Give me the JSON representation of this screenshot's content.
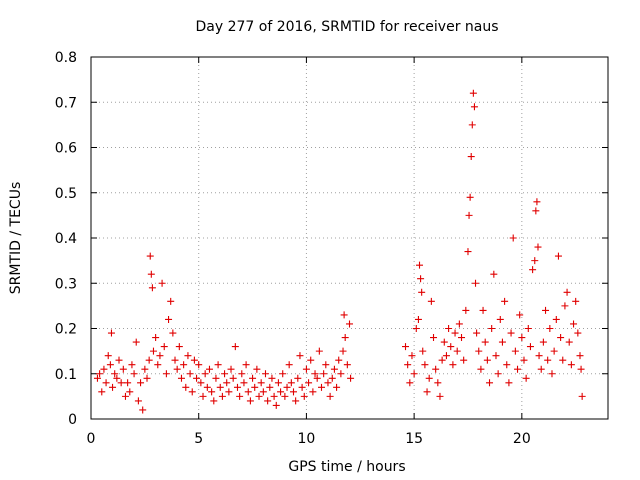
{
  "chart_data": {
    "type": "scatter",
    "title": "Day 277 of 2016, SRMTID for receiver naus",
    "xlabel": "GPS time / hours",
    "ylabel": "SRMTID / TECUs",
    "xlim": [
      0,
      24
    ],
    "ylim": [
      0,
      0.8
    ],
    "x_ticks": [
      0,
      5,
      10,
      15,
      20
    ],
    "y_ticks": [
      0,
      0.1,
      0.2,
      0.3,
      0.4,
      0.5,
      0.6,
      0.7,
      0.8
    ],
    "x_tick_labels": [
      "0",
      "5",
      "10",
      "15",
      "20"
    ],
    "y_tick_labels": [
      "0",
      "0.1",
      "0.2",
      "0.3",
      "0.4",
      "0.5",
      "0.6",
      "0.7",
      "0.8"
    ],
    "grid": true,
    "marker": "+",
    "color": "#e00000",
    "series": [
      {
        "points": [
          [
            0.3,
            0.09
          ],
          [
            0.4,
            0.1
          ],
          [
            0.5,
            0.06
          ],
          [
            0.6,
            0.11
          ],
          [
            0.7,
            0.08
          ],
          [
            0.8,
            0.14
          ],
          [
            0.9,
            0.12
          ],
          [
            0.95,
            0.19
          ],
          [
            1.0,
            0.07
          ],
          [
            1.1,
            0.1
          ],
          [
            1.2,
            0.09
          ],
          [
            1.3,
            0.13
          ],
          [
            1.4,
            0.08
          ],
          [
            1.5,
            0.11
          ],
          [
            1.6,
            0.05
          ],
          [
            1.7,
            0.08
          ],
          [
            1.8,
            0.06
          ],
          [
            1.9,
            0.12
          ],
          [
            2.0,
            0.1
          ],
          [
            2.1,
            0.17
          ],
          [
            2.2,
            0.04
          ],
          [
            2.3,
            0.08
          ],
          [
            2.4,
            0.02
          ],
          [
            2.5,
            0.11
          ],
          [
            2.6,
            0.09
          ],
          [
            2.7,
            0.13
          ],
          [
            2.75,
            0.36
          ],
          [
            2.8,
            0.32
          ],
          [
            2.85,
            0.29
          ],
          [
            2.9,
            0.15
          ],
          [
            3.0,
            0.18
          ],
          [
            3.1,
            0.12
          ],
          [
            3.2,
            0.14
          ],
          [
            3.3,
            0.3
          ],
          [
            3.4,
            0.16
          ],
          [
            3.5,
            0.1
          ],
          [
            3.6,
            0.22
          ],
          [
            3.7,
            0.26
          ],
          [
            3.8,
            0.19
          ],
          [
            3.9,
            0.13
          ],
          [
            4.0,
            0.11
          ],
          [
            4.1,
            0.16
          ],
          [
            4.2,
            0.09
          ],
          [
            4.3,
            0.12
          ],
          [
            4.4,
            0.07
          ],
          [
            4.5,
            0.14
          ],
          [
            4.6,
            0.1
          ],
          [
            4.7,
            0.06
          ],
          [
            4.8,
            0.13
          ],
          [
            4.9,
            0.09
          ],
          [
            5.0,
            0.12
          ],
          [
            5.1,
            0.08
          ],
          [
            5.2,
            0.05
          ],
          [
            5.3,
            0.1
          ],
          [
            5.4,
            0.07
          ],
          [
            5.5,
            0.11
          ],
          [
            5.6,
            0.06
          ],
          [
            5.7,
            0.04
          ],
          [
            5.8,
            0.09
          ],
          [
            5.9,
            0.12
          ],
          [
            6.0,
            0.07
          ],
          [
            6.1,
            0.05
          ],
          [
            6.2,
            0.1
          ],
          [
            6.3,
            0.08
          ],
          [
            6.4,
            0.06
          ],
          [
            6.5,
            0.11
          ],
          [
            6.6,
            0.09
          ],
          [
            6.7,
            0.16
          ],
          [
            6.8,
            0.07
          ],
          [
            6.9,
            0.05
          ],
          [
            7.0,
            0.1
          ],
          [
            7.1,
            0.08
          ],
          [
            7.2,
            0.12
          ],
          [
            7.3,
            0.06
          ],
          [
            7.4,
            0.04
          ],
          [
            7.5,
            0.09
          ],
          [
            7.6,
            0.07
          ],
          [
            7.7,
            0.11
          ],
          [
            7.8,
            0.05
          ],
          [
            7.9,
            0.08
          ],
          [
            8.0,
            0.06
          ],
          [
            8.1,
            0.1
          ],
          [
            8.2,
            0.04
          ],
          [
            8.3,
            0.07
          ],
          [
            8.4,
            0.09
          ],
          [
            8.5,
            0.05
          ],
          [
            8.6,
            0.03
          ],
          [
            8.7,
            0.08
          ],
          [
            8.8,
            0.06
          ],
          [
            8.9,
            0.1
          ],
          [
            9.0,
            0.05
          ],
          [
            9.1,
            0.07
          ],
          [
            9.2,
            0.12
          ],
          [
            9.3,
            0.08
          ],
          [
            9.4,
            0.06
          ],
          [
            9.5,
            0.04
          ],
          [
            9.6,
            0.09
          ],
          [
            9.7,
            0.14
          ],
          [
            9.8,
            0.07
          ],
          [
            9.9,
            0.05
          ],
          [
            10.0,
            0.11
          ],
          [
            10.1,
            0.08
          ],
          [
            10.2,
            0.13
          ],
          [
            10.3,
            0.06
          ],
          [
            10.4,
            0.1
          ],
          [
            10.5,
            0.09
          ],
          [
            10.6,
            0.15
          ],
          [
            10.7,
            0.07
          ],
          [
            10.8,
            0.1
          ],
          [
            10.9,
            0.12
          ],
          [
            11.0,
            0.08
          ],
          [
            11.1,
            0.05
          ],
          [
            11.2,
            0.09
          ],
          [
            11.3,
            0.11
          ],
          [
            11.4,
            0.07
          ],
          [
            11.5,
            0.13
          ],
          [
            11.6,
            0.1
          ],
          [
            11.7,
            0.15
          ],
          [
            11.75,
            0.23
          ],
          [
            11.8,
            0.18
          ],
          [
            11.9,
            0.12
          ],
          [
            12.0,
            0.21
          ],
          [
            12.05,
            0.09
          ],
          [
            14.6,
            0.16
          ],
          [
            14.7,
            0.12
          ],
          [
            14.8,
            0.08
          ],
          [
            14.9,
            0.14
          ],
          [
            15.0,
            0.1
          ],
          [
            15.1,
            0.2
          ],
          [
            15.2,
            0.22
          ],
          [
            15.25,
            0.34
          ],
          [
            15.3,
            0.31
          ],
          [
            15.35,
            0.28
          ],
          [
            15.4,
            0.15
          ],
          [
            15.5,
            0.12
          ],
          [
            15.6,
            0.06
          ],
          [
            15.7,
            0.09
          ],
          [
            15.8,
            0.26
          ],
          [
            15.9,
            0.18
          ],
          [
            16.0,
            0.11
          ],
          [
            16.1,
            0.08
          ],
          [
            16.2,
            0.05
          ],
          [
            16.3,
            0.13
          ],
          [
            16.4,
            0.17
          ],
          [
            16.5,
            0.14
          ],
          [
            16.6,
            0.2
          ],
          [
            16.7,
            0.16
          ],
          [
            16.8,
            0.12
          ],
          [
            16.9,
            0.19
          ],
          [
            17.0,
            0.15
          ],
          [
            17.1,
            0.21
          ],
          [
            17.2,
            0.18
          ],
          [
            17.3,
            0.13
          ],
          [
            17.4,
            0.24
          ],
          [
            17.5,
            0.37
          ],
          [
            17.55,
            0.45
          ],
          [
            17.6,
            0.49
          ],
          [
            17.65,
            0.58
          ],
          [
            17.7,
            0.65
          ],
          [
            17.75,
            0.72
          ],
          [
            17.8,
            0.69
          ],
          [
            17.85,
            0.3
          ],
          [
            17.9,
            0.19
          ],
          [
            18.0,
            0.15
          ],
          [
            18.1,
            0.11
          ],
          [
            18.2,
            0.24
          ],
          [
            18.3,
            0.17
          ],
          [
            18.4,
            0.13
          ],
          [
            18.5,
            0.08
          ],
          [
            18.6,
            0.2
          ],
          [
            18.7,
            0.32
          ],
          [
            18.8,
            0.14
          ],
          [
            18.9,
            0.1
          ],
          [
            19.0,
            0.22
          ],
          [
            19.1,
            0.17
          ],
          [
            19.2,
            0.26
          ],
          [
            19.3,
            0.12
          ],
          [
            19.4,
            0.08
          ],
          [
            19.5,
            0.19
          ],
          [
            19.6,
            0.4
          ],
          [
            19.7,
            0.15
          ],
          [
            19.8,
            0.11
          ],
          [
            19.9,
            0.23
          ],
          [
            20.0,
            0.18
          ],
          [
            20.1,
            0.13
          ],
          [
            20.2,
            0.09
          ],
          [
            20.3,
            0.2
          ],
          [
            20.4,
            0.16
          ],
          [
            20.5,
            0.33
          ],
          [
            20.6,
            0.35
          ],
          [
            20.65,
            0.46
          ],
          [
            20.7,
            0.48
          ],
          [
            20.75,
            0.38
          ],
          [
            20.8,
            0.14
          ],
          [
            20.9,
            0.11
          ],
          [
            21.0,
            0.17
          ],
          [
            21.1,
            0.24
          ],
          [
            21.2,
            0.13
          ],
          [
            21.3,
            0.2
          ],
          [
            21.4,
            0.1
          ],
          [
            21.5,
            0.15
          ],
          [
            21.6,
            0.22
          ],
          [
            21.7,
            0.36
          ],
          [
            21.8,
            0.18
          ],
          [
            21.9,
            0.13
          ],
          [
            22.0,
            0.25
          ],
          [
            22.1,
            0.28
          ],
          [
            22.2,
            0.17
          ],
          [
            22.3,
            0.12
          ],
          [
            22.4,
            0.21
          ],
          [
            22.5,
            0.26
          ],
          [
            22.6,
            0.19
          ],
          [
            22.7,
            0.14
          ],
          [
            22.75,
            0.11
          ],
          [
            22.8,
            0.05
          ]
        ]
      }
    ]
  }
}
